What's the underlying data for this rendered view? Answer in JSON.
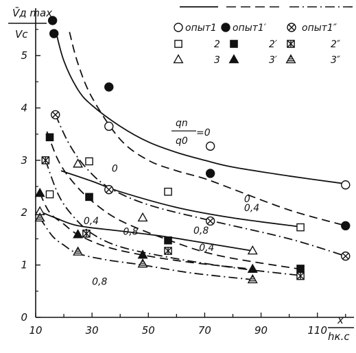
{
  "chart_data": {
    "type": "scatter",
    "title": "",
    "ylabel": {
      "numerator": "V̄д max",
      "denominator": "Vc"
    },
    "xlabel": {
      "numerator": "x",
      "denominator": "hк.с"
    },
    "xlim": [
      10,
      122
    ],
    "ylim": [
      0,
      5.8
    ],
    "x_ticks": [
      "10",
      "30",
      "50",
      "70",
      "90",
      "110"
    ],
    "x_tick_values": [
      10,
      30,
      50,
      70,
      90,
      110
    ],
    "y_ticks": [
      "0",
      "1",
      "2",
      "3",
      "4",
      "5"
    ],
    "y_tick_values": [
      0,
      1,
      2,
      3,
      4,
      5
    ],
    "legend": {
      "header_label_1": "опыт1",
      "header_label_2": "опыт1′",
      "header_label_3": "опыт1″",
      "row2": [
        "2",
        "2′",
        "2″"
      ],
      "row3": [
        "3",
        "3′",
        "3″"
      ]
    },
    "curve_labels": [
      {
        "text": "0",
        "x": 37,
        "y": 2.78
      },
      {
        "text": "0",
        "x": 84,
        "y": 2.2
      },
      {
        "text": "0,4",
        "x": 84,
        "y": 2.03
      },
      {
        "text": "0,8",
        "x": 66,
        "y": 1.6
      },
      {
        "text": "0,4",
        "x": 68,
        "y": 1.27
      },
      {
        "text": "0,4",
        "x": 27,
        "y": 1.78
      },
      {
        "text": "0,8",
        "x": 41,
        "y": 1.58
      },
      {
        "text": "0,8",
        "x": 30,
        "y": 0.62
      }
    ],
    "qn_label": {
      "numerator": "qn",
      "denominator": "q0",
      "value": "=0"
    },
    "series": [
      {
        "marker": "open-circle",
        "points": [
          [
            36,
            3.65
          ],
          [
            72,
            3.27
          ],
          [
            120,
            2.53
          ]
        ]
      },
      {
        "marker": "filled-circle",
        "points": [
          [
            16,
            5.67
          ],
          [
            16.5,
            5.42
          ],
          [
            36,
            4.4
          ],
          [
            72,
            2.75
          ],
          [
            120,
            1.75
          ]
        ]
      },
      {
        "marker": "circle-x",
        "points": [
          [
            17,
            3.87
          ],
          [
            36,
            2.44
          ],
          [
            72,
            1.84
          ],
          [
            120,
            1.17
          ]
        ]
      },
      {
        "marker": "open-square",
        "points": [
          [
            15,
            2.35
          ],
          [
            29,
            2.98
          ],
          [
            57,
            2.4
          ],
          [
            104,
            1.72
          ]
        ]
      },
      {
        "marker": "filled-square",
        "points": [
          [
            15,
            3.44
          ],
          [
            29,
            2.3
          ],
          [
            57,
            1.47
          ],
          [
            104,
            0.93
          ]
        ]
      },
      {
        "marker": "square-x",
        "points": [
          [
            13.5,
            3.0
          ],
          [
            28,
            1.6
          ],
          [
            57,
            1.27
          ],
          [
            104,
            0.79
          ]
        ]
      },
      {
        "marker": "open-triangle",
        "points": [
          [
            11.5,
            2.02
          ],
          [
            25,
            2.93
          ],
          [
            48,
            1.9
          ],
          [
            87,
            1.27
          ]
        ]
      },
      {
        "marker": "filled-triangle",
        "points": [
          [
            11.5,
            2.37
          ],
          [
            25,
            1.58
          ],
          [
            48,
            1.19
          ],
          [
            87,
            0.92
          ]
        ]
      },
      {
        "marker": "hatched-triangle",
        "points": [
          [
            11.5,
            1.9
          ],
          [
            25,
            1.25
          ],
          [
            48,
            1.02
          ],
          [
            87,
            0.72
          ]
        ]
      }
    ],
    "curves": [
      {
        "style": "solid",
        "points": [
          [
            17,
            5.5
          ],
          [
            20,
            4.9
          ],
          [
            25,
            4.35
          ],
          [
            30,
            4.05
          ],
          [
            40,
            3.65
          ],
          [
            50,
            3.35
          ],
          [
            60,
            3.15
          ],
          [
            70,
            3.0
          ],
          [
            80,
            2.87
          ],
          [
            100,
            2.7
          ],
          [
            120,
            2.55
          ]
        ]
      },
      {
        "style": "dashed",
        "points": [
          [
            22,
            5.45
          ],
          [
            25,
            4.85
          ],
          [
            30,
            4.2
          ],
          [
            40,
            3.4
          ],
          [
            50,
            3.0
          ],
          [
            60,
            2.8
          ],
          [
            70,
            2.65
          ],
          [
            80,
            2.45
          ],
          [
            100,
            2.05
          ],
          [
            120,
            1.75
          ]
        ]
      },
      {
        "style": "dashdot",
        "points": [
          [
            17,
            3.87
          ],
          [
            22,
            3.3
          ],
          [
            28,
            2.85
          ],
          [
            36,
            2.48
          ],
          [
            50,
            2.15
          ],
          [
            72,
            1.85
          ],
          [
            100,
            1.5
          ],
          [
            120,
            1.17
          ]
        ]
      },
      {
        "style": "solid",
        "points": [
          [
            19,
            2.8
          ],
          [
            30,
            2.6
          ],
          [
            40,
            2.4
          ],
          [
            60,
            2.1
          ],
          [
            80,
            1.9
          ],
          [
            104,
            1.73
          ]
        ]
      },
      {
        "style": "dashed",
        "points": [
          [
            14,
            3.55
          ],
          [
            18,
            3.0
          ],
          [
            23,
            2.6
          ],
          [
            30,
            2.22
          ],
          [
            40,
            1.85
          ],
          [
            57,
            1.48
          ],
          [
            75,
            1.18
          ],
          [
            104,
            0.92
          ]
        ]
      },
      {
        "style": "dashdot",
        "points": [
          [
            13.5,
            3.0
          ],
          [
            18,
            2.35
          ],
          [
            23,
            1.95
          ],
          [
            30,
            1.6
          ],
          [
            40,
            1.35
          ],
          [
            57,
            1.15
          ],
          [
            80,
            0.95
          ],
          [
            104,
            0.8
          ]
        ]
      },
      {
        "style": "solid",
        "points": [
          [
            11.5,
            2.02
          ],
          [
            17,
            1.9
          ],
          [
            25,
            1.75
          ],
          [
            40,
            1.65
          ],
          [
            55,
            1.55
          ],
          [
            70,
            1.42
          ],
          [
            87,
            1.27
          ]
        ]
      },
      {
        "style": "dashed",
        "points": [
          [
            11.5,
            2.37
          ],
          [
            15,
            2.0
          ],
          [
            20,
            1.78
          ],
          [
            25,
            1.58
          ],
          [
            35,
            1.35
          ],
          [
            48,
            1.19
          ],
          [
            65,
            1.05
          ],
          [
            87,
            0.92
          ]
        ]
      },
      {
        "style": "dashdot",
        "points": [
          [
            11.5,
            1.9
          ],
          [
            16,
            1.55
          ],
          [
            20,
            1.38
          ],
          [
            25,
            1.22
          ],
          [
            35,
            1.1
          ],
          [
            48,
            1.0
          ],
          [
            65,
            0.85
          ],
          [
            87,
            0.72
          ]
        ]
      }
    ]
  }
}
